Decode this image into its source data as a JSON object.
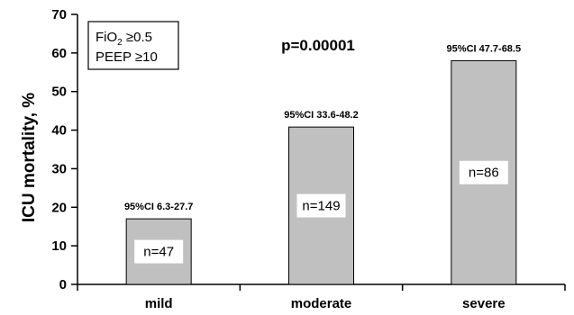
{
  "chart_data": {
    "type": "bar",
    "categories": [
      "mild",
      "moderate",
      "severe"
    ],
    "values": [
      17,
      40.8,
      58
    ],
    "ylabel": "ICU mortality, %",
    "xlabel": "",
    "ylim": [
      0,
      70
    ],
    "yticks": [
      "0",
      "10",
      "20",
      "30",
      "40",
      "50",
      "60",
      "70"
    ],
    "grid": false,
    "bar_color": "#c0c0c0",
    "ci_labels": [
      "95%CI 6.3-27.7",
      "95%CI 33.6-48.2",
      "95%CI 47.7-68.5"
    ],
    "n_labels": [
      "n=47",
      "n=149",
      "n=86"
    ],
    "annotations": {
      "p_value": "p=0.00001",
      "criteria_line1": "FiO",
      "criteria_sub": "2",
      "criteria_line1_rest": " ≥0.5",
      "criteria_line2": "PEEP ≥10"
    }
  }
}
